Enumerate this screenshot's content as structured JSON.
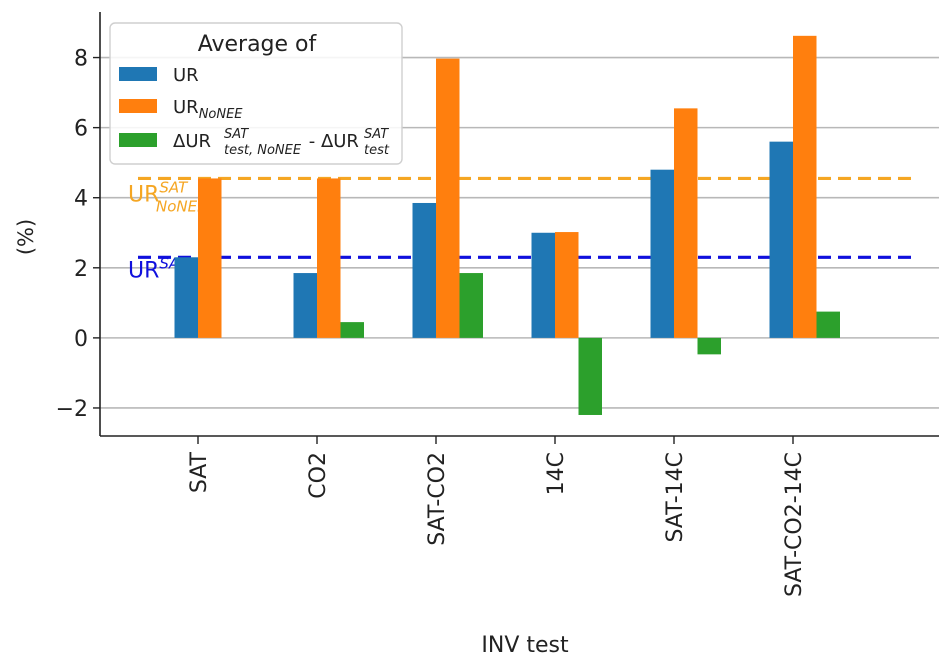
{
  "chart_data": {
    "type": "bar",
    "categories": [
      "SAT",
      "CO2",
      "SAT-CO2",
      "14C",
      "SAT-14C",
      "SAT-CO2-14C"
    ],
    "series": [
      {
        "name": "UR",
        "color": "#1f77b4",
        "values": [
          2.3,
          1.85,
          3.85,
          3.0,
          4.8,
          5.6
        ]
      },
      {
        "name": "UR_NoNEE",
        "color": "#ff7f0e",
        "values": [
          4.55,
          4.55,
          7.97,
          3.02,
          6.55,
          8.62
        ]
      },
      {
        "name": "ΔUR^SAT_test,NoNEE - ΔUR^SAT_test",
        "color": "#2ca02c",
        "values": [
          null,
          0.45,
          1.85,
          -2.2,
          -0.47,
          0.75
        ]
      }
    ],
    "reference_lines": [
      {
        "label_main": "UR",
        "label_sup": "SAT",
        "label_sub": "NoNEE",
        "value": 4.55,
        "color": "#f5a623",
        "style": "dashed"
      },
      {
        "label_main": "UR",
        "label_sup": "SAT",
        "value": 2.3,
        "color": "#1010dd",
        "style": "dashed"
      }
    ],
    "legend": {
      "title": "Average of",
      "position": "top-left",
      "entries": [
        {
          "main": "UR"
        },
        {
          "main": "UR",
          "sub": "NoNEE"
        },
        {
          "main": "ΔUR",
          "sup": "SAT",
          "sub": "test, NoNEE",
          "mid": " - ΔUR",
          "sup2": "SAT",
          "sub2": "test"
        }
      ]
    },
    "xlabel": "INV test",
    "ylabel": "(%)",
    "ylim": [
      -2.8,
      9.3
    ],
    "yticks": [
      8,
      6,
      4,
      2,
      0,
      -2
    ],
    "ytick_labels": [
      "8",
      "6",
      "4",
      "2",
      "0",
      "−2"
    ],
    "grid": "horizontal"
  }
}
